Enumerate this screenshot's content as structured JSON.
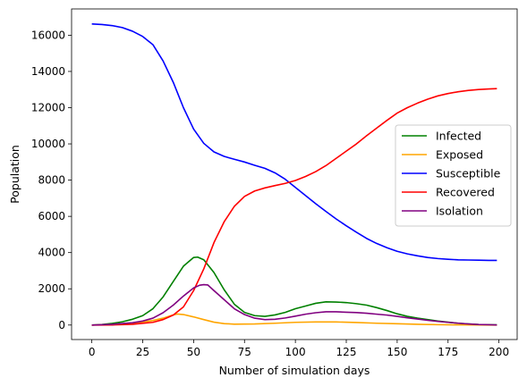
{
  "chart_data": {
    "type": "line",
    "title": "",
    "xlabel": "Number of simulation days",
    "ylabel": "Population",
    "xlim": [
      -9.95,
      208.95
    ],
    "ylim": [
      -800,
      17450
    ],
    "xticks": [
      0,
      25,
      50,
      75,
      100,
      125,
      150,
      175,
      200
    ],
    "yticks": [
      0,
      2000,
      4000,
      6000,
      8000,
      10000,
      12000,
      14000,
      16000
    ],
    "legend_position": "center-right",
    "grid": false,
    "series": [
      {
        "name": "Infected",
        "color": "#008000",
        "x": [
          0,
          5,
          10,
          15,
          20,
          25,
          30,
          35,
          40,
          45,
          50,
          52,
          55,
          60,
          65,
          70,
          75,
          80,
          85,
          90,
          95,
          100,
          105,
          110,
          115,
          120,
          125,
          130,
          135,
          140,
          145,
          150,
          155,
          160,
          165,
          170,
          175,
          180,
          185,
          190,
          195,
          199
        ],
        "y": [
          0,
          30,
          90,
          180,
          320,
          520,
          900,
          1550,
          2400,
          3250,
          3730,
          3750,
          3600,
          2900,
          1950,
          1150,
          700,
          520,
          480,
          560,
          700,
          900,
          1050,
          1200,
          1280,
          1270,
          1240,
          1180,
          1100,
          960,
          800,
          620,
          480,
          380,
          300,
          220,
          160,
          100,
          60,
          30,
          15,
          10
        ]
      },
      {
        "name": "Exposed",
        "color": "#ffa500",
        "x": [
          0,
          10,
          20,
          30,
          35,
          40,
          42,
          45,
          50,
          55,
          60,
          65,
          70,
          80,
          90,
          100,
          110,
          120,
          130,
          140,
          150,
          160,
          170,
          180,
          190,
          199
        ],
        "y": [
          0,
          20,
          80,
          250,
          380,
          560,
          610,
          580,
          450,
          300,
          160,
          80,
          50,
          60,
          100,
          150,
          170,
          170,
          140,
          100,
          70,
          40,
          20,
          10,
          5,
          0
        ],
        "labels_note": ""
      },
      {
        "name": "Susceptible",
        "color": "#0000ff",
        "x": [
          0,
          5,
          10,
          15,
          20,
          25,
          30,
          35,
          40,
          45,
          50,
          55,
          60,
          65,
          70,
          75,
          80,
          85,
          90,
          95,
          100,
          105,
          110,
          115,
          120,
          125,
          130,
          135,
          140,
          145,
          150,
          155,
          160,
          165,
          170,
          175,
          180,
          185,
          190,
          195,
          199
        ],
        "y": [
          16620,
          16590,
          16530,
          16420,
          16220,
          15930,
          15480,
          14580,
          13400,
          12000,
          10820,
          10030,
          9560,
          9310,
          9150,
          9000,
          8820,
          8650,
          8400,
          8050,
          7600,
          7150,
          6700,
          6270,
          5860,
          5480,
          5120,
          4780,
          4500,
          4270,
          4070,
          3930,
          3820,
          3730,
          3670,
          3630,
          3600,
          3590,
          3580,
          3570,
          3570
        ]
      },
      {
        "name": "Recovered",
        "color": "#ff0000",
        "x": [
          0,
          10,
          20,
          30,
          35,
          40,
          45,
          50,
          55,
          60,
          65,
          70,
          75,
          80,
          85,
          90,
          95,
          100,
          105,
          110,
          115,
          120,
          125,
          130,
          135,
          140,
          145,
          150,
          155,
          160,
          165,
          170,
          175,
          180,
          185,
          190,
          195,
          199
        ],
        "y": [
          0,
          5,
          40,
          150,
          300,
          550,
          1000,
          1900,
          3100,
          4550,
          5700,
          6550,
          7100,
          7400,
          7570,
          7700,
          7820,
          7980,
          8200,
          8470,
          8800,
          9200,
          9600,
          10000,
          10450,
          10880,
          11300,
          11700,
          12000,
          12250,
          12470,
          12650,
          12780,
          12880,
          12950,
          13000,
          13030,
          13050
        ]
      },
      {
        "name": "Isolation",
        "color": "#800080",
        "x": [
          0,
          10,
          20,
          25,
          30,
          35,
          40,
          45,
          50,
          53,
          55,
          57,
          60,
          65,
          70,
          75,
          80,
          85,
          90,
          95,
          100,
          105,
          110,
          115,
          120,
          125,
          130,
          135,
          140,
          145,
          150,
          155,
          160,
          165,
          170,
          175,
          180,
          185,
          190,
          195,
          199
        ],
        "y": [
          0,
          40,
          130,
          220,
          380,
          680,
          1100,
          1600,
          2050,
          2200,
          2230,
          2210,
          1900,
          1400,
          900,
          580,
          380,
          300,
          320,
          390,
          490,
          600,
          680,
          730,
          730,
          710,
          690,
          650,
          600,
          550,
          480,
          400,
          330,
          260,
          200,
          150,
          100,
          60,
          30,
          15,
          5
        ]
      }
    ]
  }
}
